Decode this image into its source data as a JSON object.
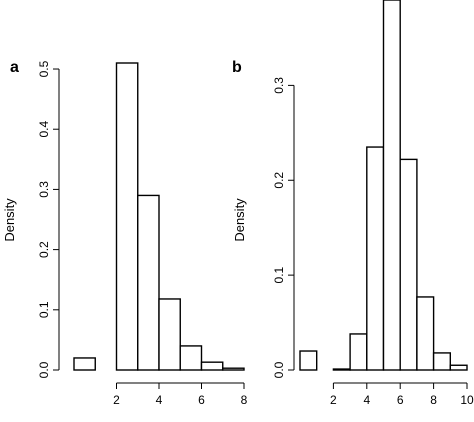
{
  "chart_data": [
    {
      "type": "bar",
      "panel_label": "a",
      "ylabel": "Density",
      "xlabel": "",
      "x_ticks": [
        2,
        4,
        6,
        8
      ],
      "y_ticks": [
        0.0,
        0.1,
        0.2,
        0.3,
        0.4,
        0.5
      ],
      "y_tick_labels": [
        "0.0",
        "0.1",
        "0.2",
        "0.3",
        "0.4",
        "0.5"
      ],
      "xlim": [
        0,
        9
      ],
      "ylim": [
        0,
        0.51
      ],
      "bins": [
        {
          "x0": 0,
          "x1": 1,
          "value": 0.02
        },
        {
          "x0": 2,
          "x1": 3,
          "value": 0.51
        },
        {
          "x0": 3,
          "x1": 4,
          "value": 0.29
        },
        {
          "x0": 4,
          "x1": 5,
          "value": 0.118
        },
        {
          "x0": 5,
          "x1": 6,
          "value": 0.04
        },
        {
          "x0": 6,
          "x1": 7,
          "value": 0.013
        },
        {
          "x0": 7,
          "x1": 8,
          "value": 0.003
        }
      ]
    },
    {
      "type": "bar",
      "panel_label": "b",
      "ylabel": "Density",
      "xlabel": "",
      "x_ticks": [
        2,
        4,
        6,
        8,
        10
      ],
      "y_ticks": [
        0.0,
        0.1,
        0.2,
        0.3
      ],
      "y_tick_labels": [
        "0.0",
        "0.1",
        "0.2",
        "0.3"
      ],
      "xlim": [
        0,
        10
      ],
      "ylim": [
        0,
        0.39
      ],
      "bins": [
        {
          "x0": 0,
          "x1": 1,
          "value": 0.02
        },
        {
          "x0": 2,
          "x1": 3,
          "value": 0.001
        },
        {
          "x0": 3,
          "x1": 4,
          "value": 0.038
        },
        {
          "x0": 4,
          "x1": 5,
          "value": 0.235
        },
        {
          "x0": 5,
          "x1": 6,
          "value": 0.39
        },
        {
          "x0": 6,
          "x1": 7,
          "value": 0.222
        },
        {
          "x0": 7,
          "x1": 8,
          "value": 0.077
        },
        {
          "x0": 8,
          "x1": 9,
          "value": 0.018
        },
        {
          "x0": 9,
          "x1": 10,
          "value": 0.005
        }
      ]
    }
  ]
}
